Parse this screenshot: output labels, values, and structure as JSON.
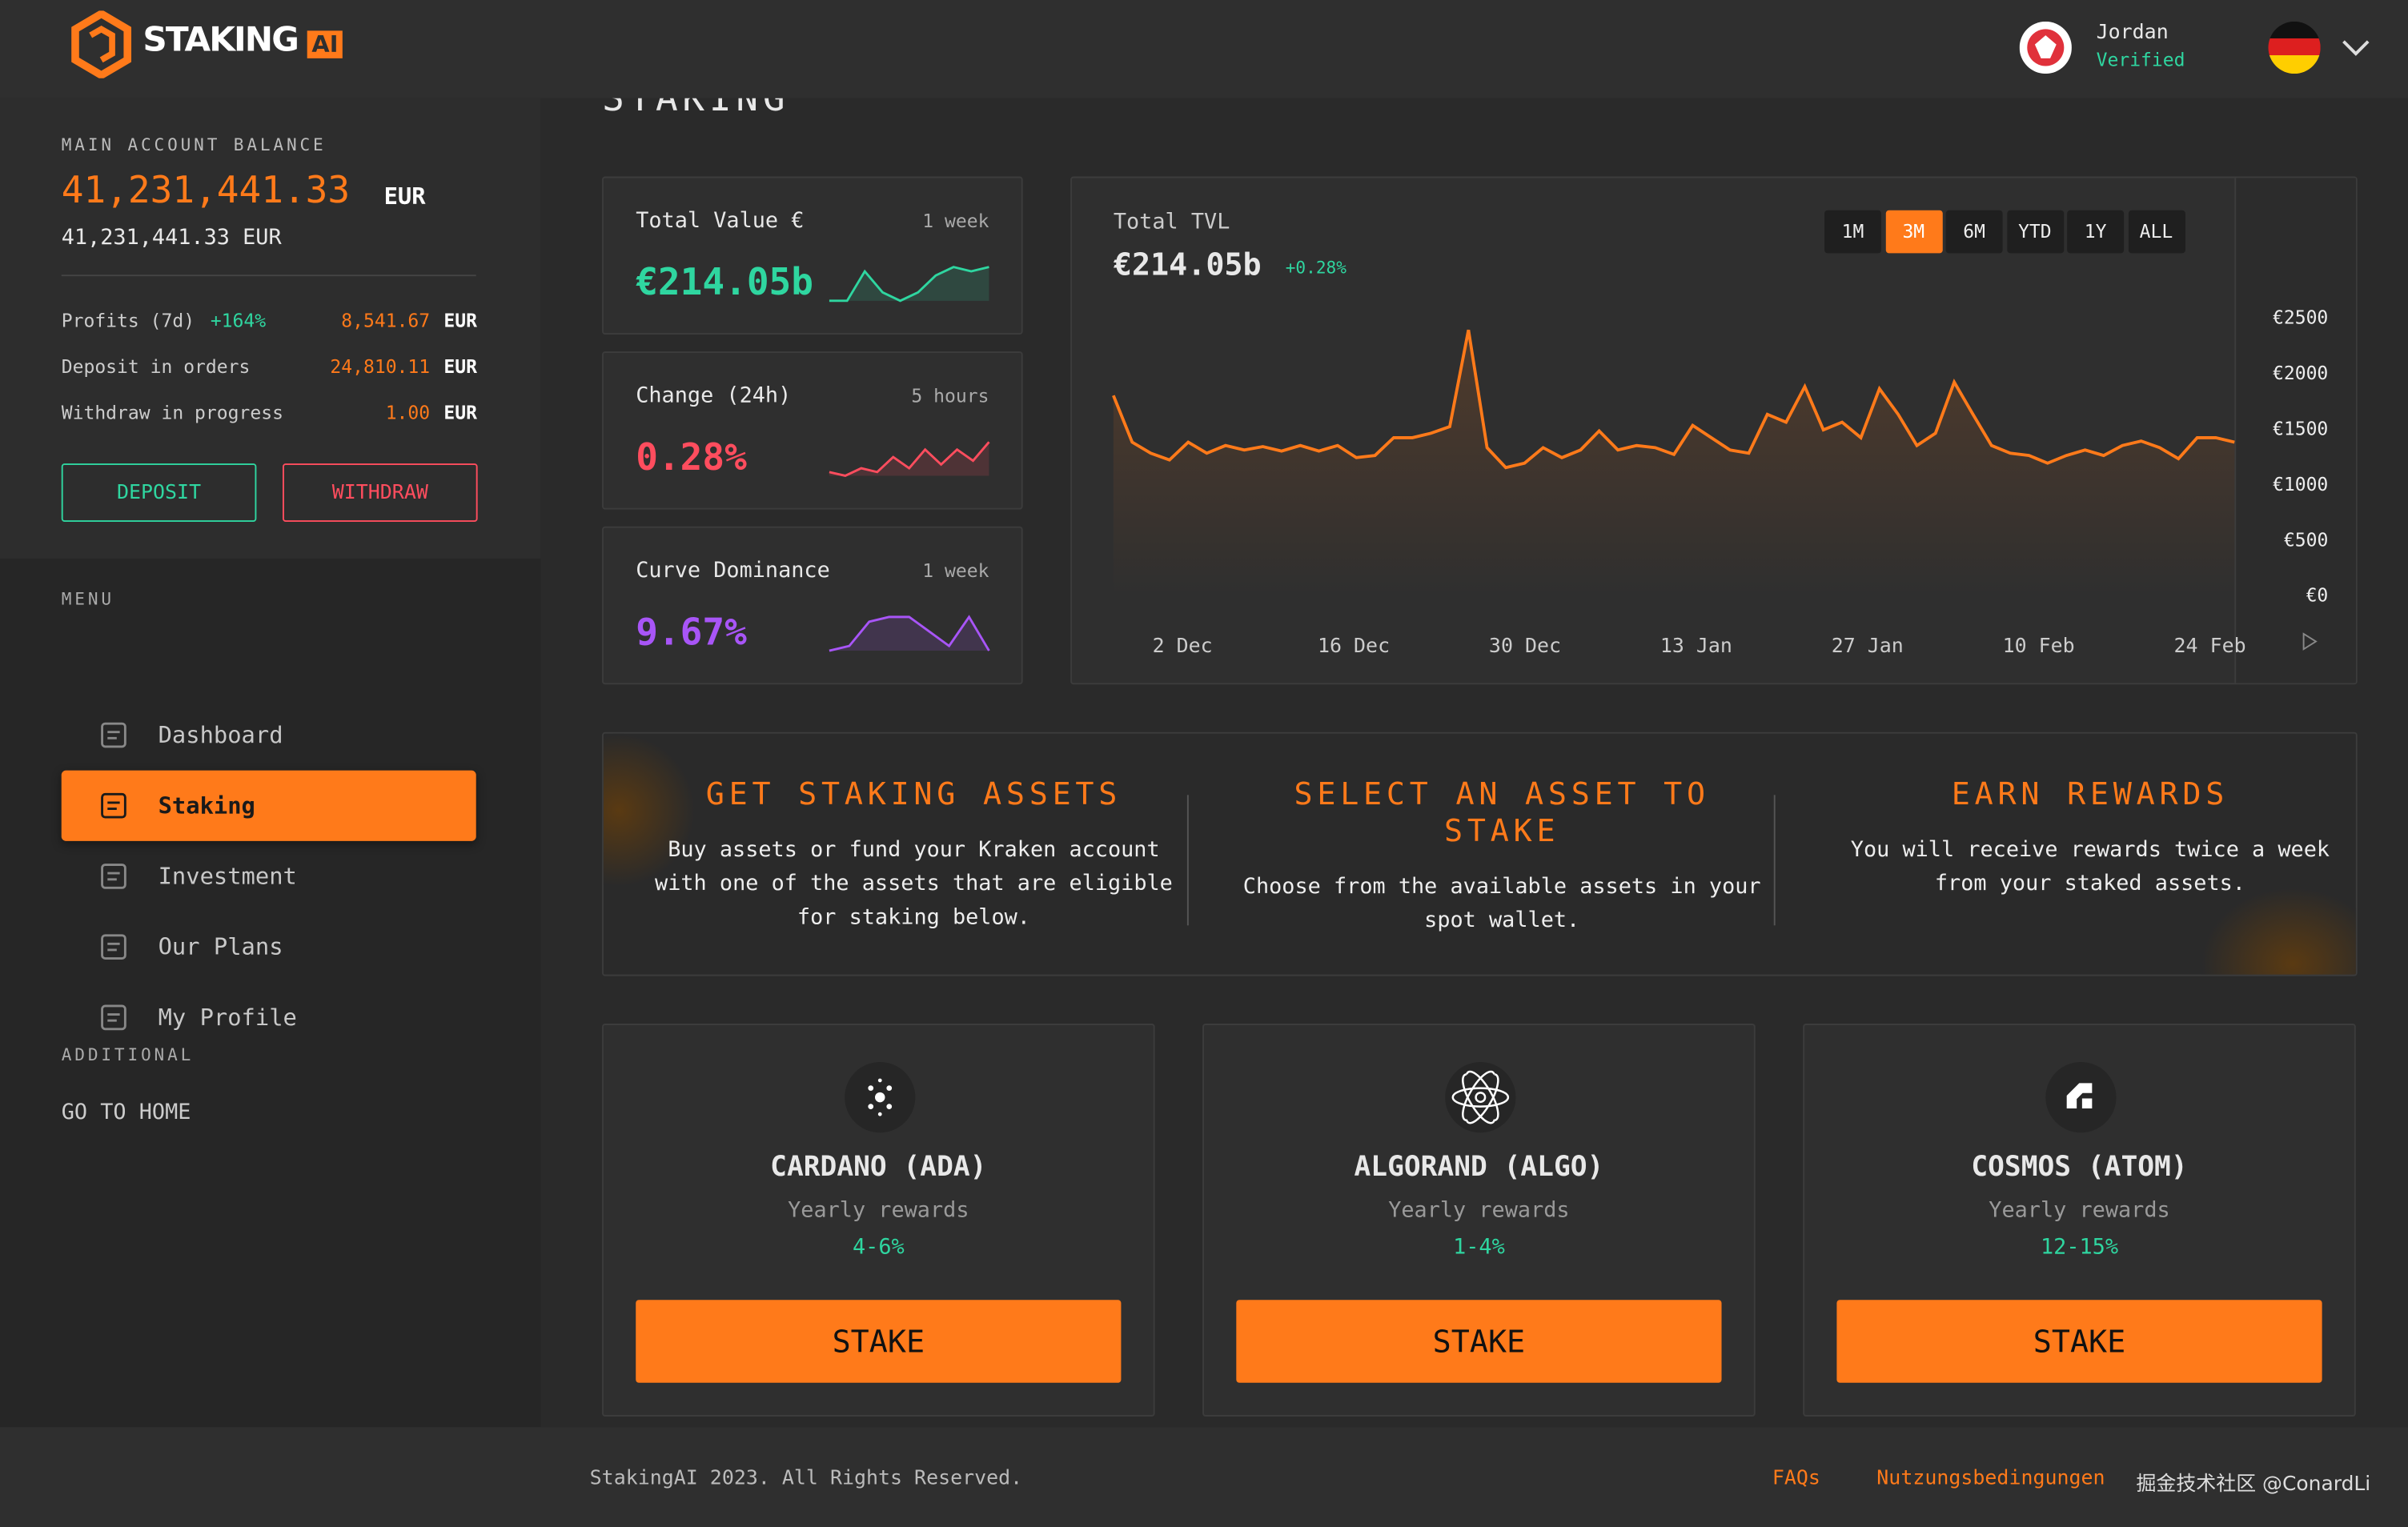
{
  "header": {
    "logo": "STAKING",
    "logo_badge": "AI",
    "user_name": "Jordan",
    "user_status": "Verified"
  },
  "sidebar": {
    "balance_label": "MAIN ACCOUNT BALANCE",
    "balance": "41,231,441.33",
    "balance_currency": "EUR",
    "balance_secondary": "41,231,441.33 EUR",
    "stats": [
      {
        "label": "Profits (7d)",
        "change": "+164%",
        "value": "8,541.67",
        "currency": "EUR"
      },
      {
        "label": "Deposit in orders",
        "value": "24,810.11",
        "currency": "EUR"
      },
      {
        "label": "Withdraw in progress",
        "value": "1.00",
        "currency": "EUR"
      }
    ],
    "deposit": "DEPOSIT",
    "withdraw": "WITHDRAW",
    "menu_label": "MENU",
    "menu": [
      "Dashboard",
      "Staking",
      "Investment",
      "Our Plans",
      "My Profile"
    ],
    "active_menu": "Staking",
    "additional_label": "ADDITIONAL",
    "home": "GO TO HOME"
  },
  "page_title": "STAKING",
  "stat_cards": [
    {
      "title": "Total Value €",
      "period": "1 week",
      "value": "€214.05b",
      "color": "#2fd6a0",
      "spark": [
        1,
        1,
        8,
        3,
        1,
        3,
        7,
        9,
        8,
        9
      ]
    },
    {
      "title": "Change (24h)",
      "period": "5 hours",
      "value": "0.28%",
      "color": "#ff4d5e",
      "spark": [
        1,
        0,
        2,
        1,
        5,
        2,
        7,
        3,
        7,
        4,
        9
      ]
    },
    {
      "title": "Curve Dominance",
      "period": "1 week",
      "value": "9.67%",
      "color": "#a855f7",
      "spark": [
        1,
        2,
        7,
        8,
        8,
        5,
        2,
        8,
        1
      ]
    }
  ],
  "tvl_chart": {
    "type": "line",
    "title": "Total TVL",
    "value": "€214.05b",
    "change": "+0.28%",
    "ranges": [
      "1M",
      "3M",
      "6M",
      "YTD",
      "1Y",
      "ALL"
    ],
    "active_range": "3M",
    "color": "#ff7a1a",
    "x_labels": [
      "2 Dec",
      "16 Dec",
      "30 Dec",
      "13 Jan",
      "27 Jan",
      "10 Feb",
      "24 Feb"
    ],
    "ylim": [
      0,
      2500
    ],
    "yticks": [
      {
        "value": 2500,
        "label": "€2500"
      },
      {
        "value": 2000,
        "label": "€2000"
      },
      {
        "value": 1500,
        "label": "€1500"
      },
      {
        "value": 1000,
        "label": "€1000"
      },
      {
        "value": 500,
        "label": "€500"
      },
      {
        "value": 0,
        "label": "€0"
      }
    ],
    "values": [
      1800,
      1380,
      1280,
      1220,
      1380,
      1280,
      1350,
      1310,
      1340,
      1300,
      1350,
      1300,
      1350,
      1240,
      1260,
      1420,
      1420,
      1460,
      1520,
      2390,
      1330,
      1150,
      1190,
      1330,
      1240,
      1310,
      1480,
      1310,
      1350,
      1330,
      1270,
      1530,
      1420,
      1310,
      1280,
      1630,
      1560,
      1880,
      1490,
      1560,
      1420,
      1860,
      1630,
      1350,
      1460,
      1920,
      1630,
      1350,
      1280,
      1260,
      1190,
      1260,
      1310,
      1260,
      1350,
      1390,
      1330,
      1230,
      1420,
      1420,
      1380
    ]
  },
  "steps": [
    {
      "title": "GET STAKING ASSETS",
      "text": "Buy assets or fund your Kraken account with one of the assets that are eligible for staking below."
    },
    {
      "title": "SELECT AN ASSET TO STAKE",
      "text": "Choose from the available assets in your spot wallet."
    },
    {
      "title": "EARN REWARDS",
      "text": "You will receive rewards twice a week from your staked assets."
    }
  ],
  "assets": [
    {
      "name": "CARDANO (ADA)",
      "label": "Yearly rewards",
      "rate": "4-6%",
      "button": "STAKE"
    },
    {
      "name": "ALGORAND (ALGO)",
      "label": "Yearly rewards",
      "rate": "1-4%",
      "button": "STAKE"
    },
    {
      "name": "COSMOS (ATOM)",
      "label": "Yearly rewards",
      "rate": "12-15%",
      "button": "STAKE"
    }
  ],
  "footer": {
    "copyright": "StakingAI 2023. All Rights Reserved.",
    "links": [
      "FAQs",
      "Nutzungsbedingungen"
    ],
    "watermark": "掘金技术社区 @ConardLi"
  }
}
